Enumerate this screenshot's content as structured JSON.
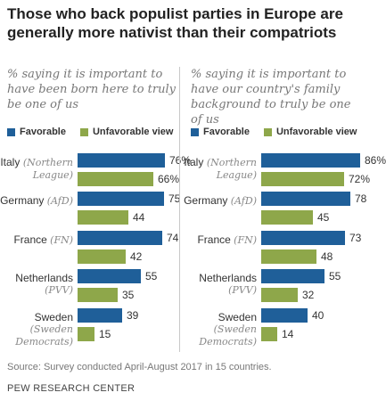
{
  "title": "Those who back populist parties in Europe are generally more nativist than their compatriots",
  "colors": {
    "favorable": "#1f5f99",
    "unfavorable": "#8ea74a"
  },
  "legend": {
    "favorable": "Favorable",
    "unfavorable": "Unfavorable view"
  },
  "source": "Source: Survey conducted April-August 2017 in 15 countries.",
  "org": "PEW RESEARCH CENTER",
  "chart_data": [
    {
      "type": "bar",
      "orientation": "horizontal",
      "subtitle": "% saying it is important to have been born here to truly be one of us",
      "categories": [
        {
          "country": "Italy",
          "party": "Northern League"
        },
        {
          "country": "Germany",
          "party": "AfD"
        },
        {
          "country": "France",
          "party": "FN"
        },
        {
          "country": "Netherlands",
          "party": "PVV"
        },
        {
          "country": "Sweden",
          "party": "Sweden Democrats"
        }
      ],
      "series": [
        {
          "name": "Favorable",
          "values": [
            76,
            75,
            74,
            55,
            39
          ],
          "labels": [
            "76%",
            "75",
            "74",
            "55",
            "39"
          ]
        },
        {
          "name": "Unfavorable view",
          "values": [
            66,
            44,
            42,
            35,
            15
          ],
          "labels": [
            "66%",
            "44",
            "42",
            "35",
            "15"
          ]
        }
      ],
      "xlim": [
        0,
        100
      ]
    },
    {
      "type": "bar",
      "orientation": "horizontal",
      "subtitle": "% saying it is important to have our country's family background to truly be one of us",
      "categories": [
        {
          "country": "Italy",
          "party": "Northern League"
        },
        {
          "country": "Germany",
          "party": "AfD"
        },
        {
          "country": "France",
          "party": "FN"
        },
        {
          "country": "Netherlands",
          "party": "PVV"
        },
        {
          "country": "Sweden",
          "party": "Sweden Democrats"
        }
      ],
      "series": [
        {
          "name": "Favorable",
          "values": [
            86,
            78,
            73,
            55,
            40
          ],
          "labels": [
            "86%",
            "78",
            "73",
            "55",
            "40"
          ]
        },
        {
          "name": "Unfavorable view",
          "values": [
            72,
            45,
            48,
            32,
            14
          ],
          "labels": [
            "72%",
            "45",
            "48",
            "32",
            "14"
          ]
        }
      ],
      "xlim": [
        0,
        100
      ]
    }
  ]
}
